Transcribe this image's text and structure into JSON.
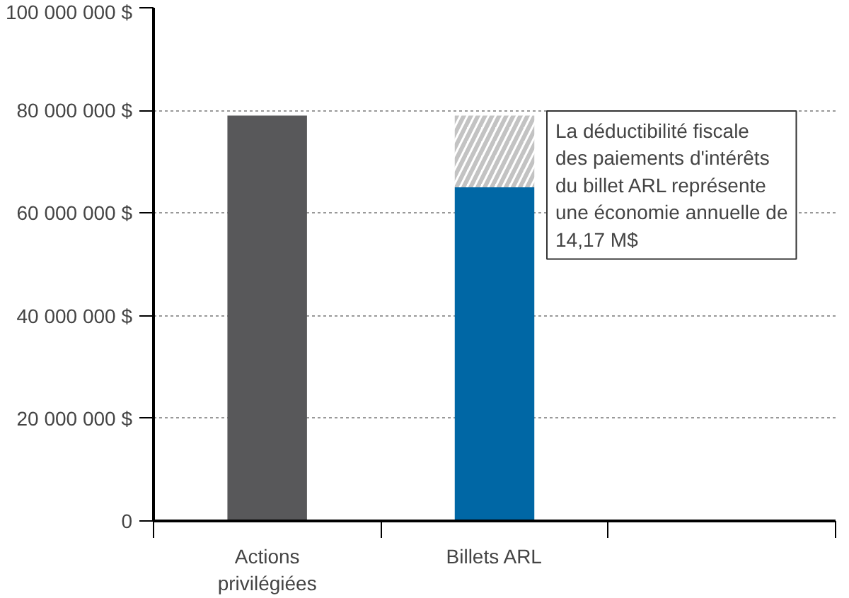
{
  "chart_data": {
    "type": "bar",
    "stacked": true,
    "categories": [
      "Actions privilégiées",
      "Billets ARL",
      null
    ],
    "series": [
      {
        "colors": [
          "#58585a",
          "#0067a5",
          null
        ],
        "values": [
          79000000,
          65000000,
          null
        ]
      },
      {
        "color": "#c3c3c3",
        "values": [
          null,
          14000000,
          null
        ]
      }
    ],
    "ylim": [
      0,
      100000000
    ],
    "yticks": [
      0,
      {
        "value": 20000000,
        "label": "20 000 000 $"
      },
      {
        "value": 40000000,
        "label": "40 000 000 $"
      },
      {
        "value": 60000000,
        "label": "60 000 000 $"
      },
      {
        "value": 80000000,
        "label": "80 000 000 $"
      },
      {
        "value": 100000000,
        "label": "100 000 000 $"
      }
    ],
    "grid": "y",
    "annotations": [
      "La déductibilité fiscale des paiements d'intérêts du billet ARL représente une économie annuelle de 14,17 M$"
    ]
  }
}
